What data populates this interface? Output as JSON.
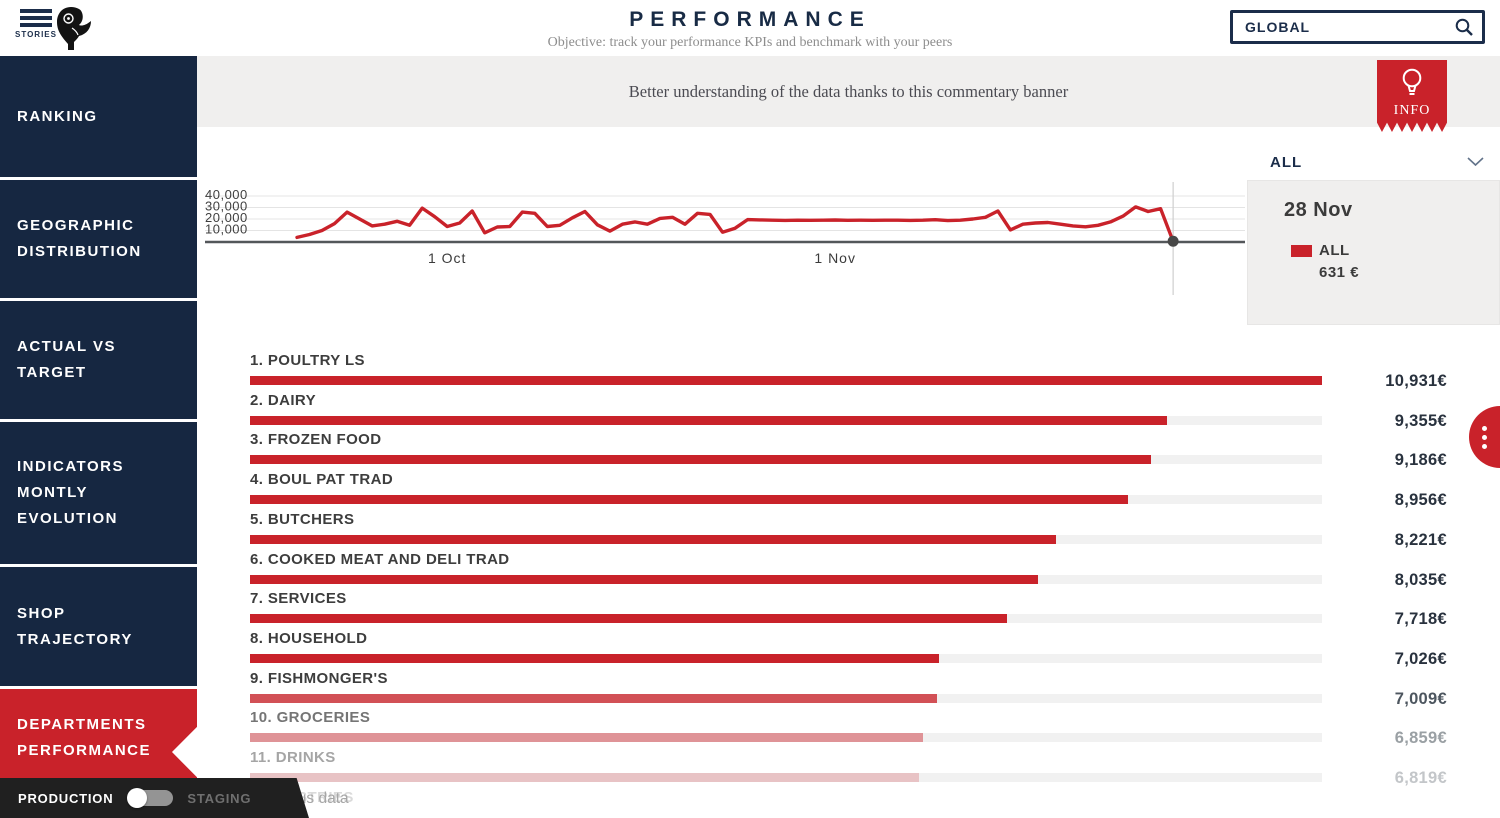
{
  "header": {
    "menu_label": "STORIES",
    "title": "PERFORMANCE",
    "subtitle": "Objective: track your performance KPIs and benchmark with your peers",
    "search_value": "GLOBAL"
  },
  "sidebar": {
    "items": [
      {
        "label": "RANKING",
        "active": false
      },
      {
        "label": "GEOGRAPHIC DISTRIBUTION",
        "active": false
      },
      {
        "label": "ACTUAL VS TARGET",
        "active": false
      },
      {
        "label": "INDICATORS MONTLY EVOLUTION",
        "active": false
      },
      {
        "label": "SHOP TRAJECTORY",
        "active": false
      },
      {
        "label": "DEPARTMENTS PERFORMANCE",
        "active": true
      }
    ]
  },
  "banner": {
    "text": "Better understanding of the data thanks to this commentary banner",
    "info_label": "INFO"
  },
  "filter": {
    "selected": "ALL"
  },
  "chart_tooltip": {
    "date": "28 Nov",
    "series": "ALL",
    "value": "631 €"
  },
  "footer": {
    "production_label": "PRODUCTION",
    "staging_label": "STAGING",
    "toggle_state": "production",
    "note": "Fictitious data"
  },
  "colors": {
    "navy": "#162741",
    "red": "#c9222a",
    "banner_bg": "#f0efee",
    "track_gray": "#f1f1f1"
  },
  "chart_data": [
    {
      "type": "line",
      "title": "",
      "series": [
        {
          "name": "ALL",
          "color": "#c9222a",
          "values": [
            4000,
            6500,
            10000,
            16000,
            26000,
            20000,
            14000,
            15500,
            18000,
            14500,
            29500,
            22000,
            13500,
            16500,
            27000,
            8000,
            13000,
            13500,
            26000,
            25000,
            13500,
            14500,
            21000,
            26500,
            15000,
            9500,
            15500,
            17500,
            15500,
            20500,
            21500,
            15500,
            25000,
            24000,
            8500,
            12000,
            19500,
            19200,
            19000,
            18800,
            19000,
            18900,
            19000,
            19100,
            18900,
            19000,
            18900,
            19000,
            19000,
            18800,
            19000,
            19400,
            18600,
            19000,
            20000,
            21500,
            27000,
            10500,
            15500,
            16500,
            17000,
            15500,
            14000,
            13200,
            14500,
            17500,
            22500,
            30500,
            26500,
            29000,
            631
          ]
        }
      ],
      "x_ticks": [
        {
          "label": "1 Oct",
          "day": 12
        },
        {
          "label": "1 Nov",
          "day": 43
        }
      ],
      "y_ticks": [
        10000,
        20000,
        30000,
        40000
      ],
      "y_tick_labels": [
        "10,000",
        "20,000",
        "30,000",
        "40,000"
      ],
      "ylim": [
        0,
        45000
      ],
      "grid": true,
      "selected_point": {
        "date": "28 Nov",
        "series": "ALL",
        "value": 631,
        "day": 70
      }
    },
    {
      "type": "bar",
      "orientation": "horizontal",
      "title": "",
      "categories": [
        "1. POULTRY LS",
        "2. DAIRY",
        "3. FROZEN FOOD",
        "4. BOUL PAT TRAD",
        "5. BUTCHERS",
        "6. COOKED MEAT AND DELI TRAD",
        "7. SERVICES",
        "8. HOUSEHOLD",
        "9. FISHMONGER'S",
        "10. GROCERIES",
        "11. DRINKS",
        "12. PASTRIES"
      ],
      "values": [
        10931,
        9355,
        9186,
        8956,
        8221,
        8035,
        7718,
        7026,
        7009,
        6859,
        6819,
        null
      ],
      "value_labels": [
        "10,931€",
        "9,355€",
        "9,186€",
        "8,956€",
        "8,221€",
        "8,035€",
        "7,718€",
        "7,026€",
        "7,009€",
        "6,859€",
        "6,819€",
        ""
      ],
      "unit": "€",
      "max": 10931,
      "bar_color": "#c9222a"
    }
  ]
}
